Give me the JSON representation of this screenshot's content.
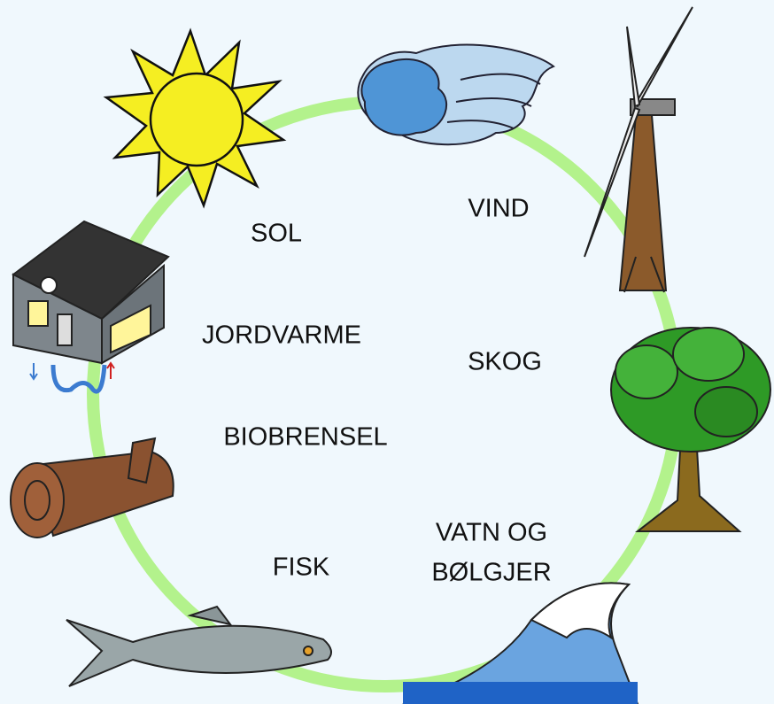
{
  "nodes": [
    {
      "label": "SOL"
    },
    {
      "label": "VIND"
    },
    {
      "label": "JORDVARME"
    },
    {
      "label": "SKOG"
    },
    {
      "label": "BIOBRENSEL"
    },
    {
      "lines": [
        "VATN OG",
        "BØLGJER"
      ]
    },
    {
      "label": "FISK"
    }
  ]
}
